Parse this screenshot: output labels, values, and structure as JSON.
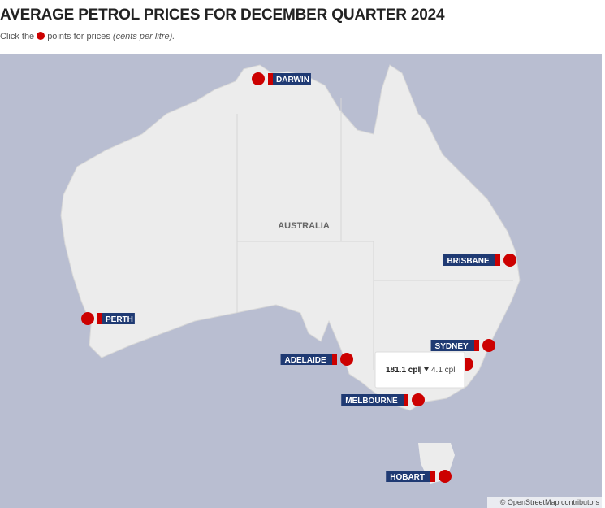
{
  "header": {
    "title": "AVERAGE PETROL PRICES FOR DECEMBER QUARTER 2024",
    "subtitle_before": "Click the",
    "subtitle_after": "points for prices",
    "subtitle_note": "(cents per litre)."
  },
  "map": {
    "country": "AUSTRALIA",
    "cities": [
      "DARWIN",
      "PERTH",
      "ADELAIDE",
      "MELBOURNE",
      "HOBART",
      "BRISBANE",
      "SYDNEY"
    ],
    "tooltip": {
      "price": "181.1 cpl",
      "change": "4.1 cpl"
    },
    "attribution": "© OpenStreetMap contributors"
  }
}
